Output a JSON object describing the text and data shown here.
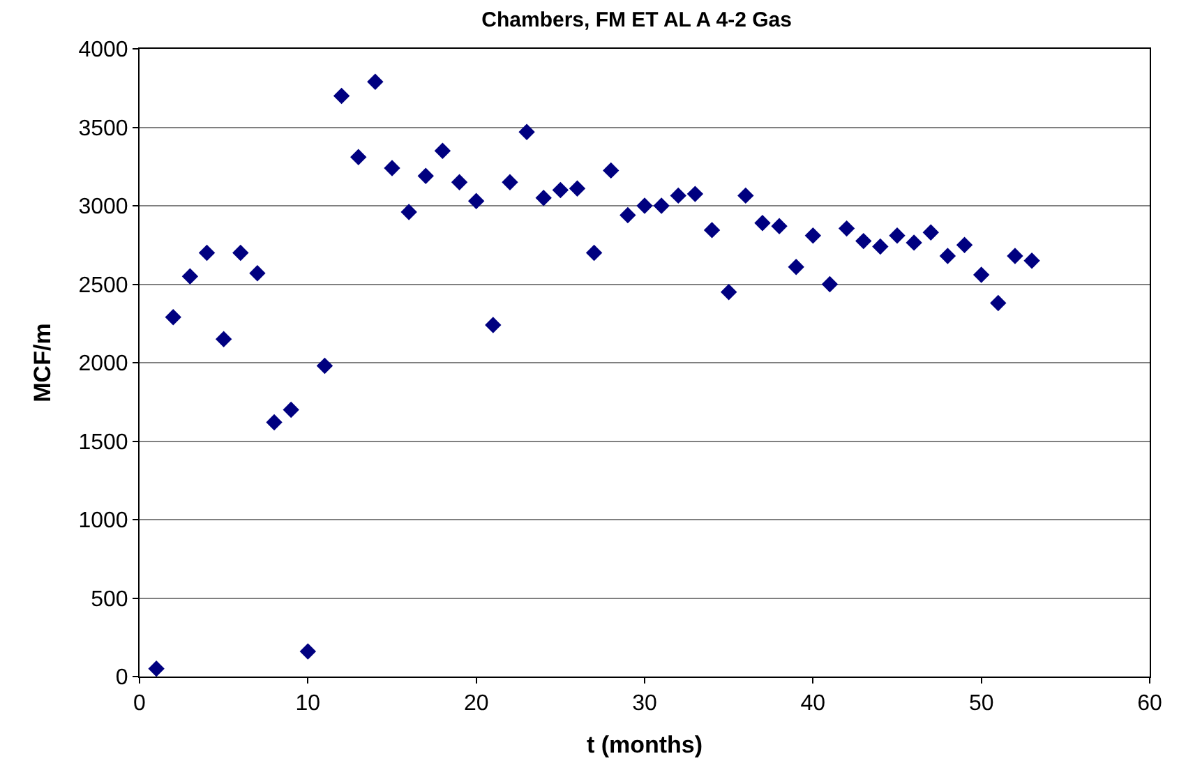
{
  "chart_data": {
    "type": "scatter",
    "title": "Chambers, FM ET AL A 4-2 Gas",
    "xlabel": "t (months)",
    "ylabel": "MCF/m",
    "x": [
      1,
      2,
      3,
      4,
      5,
      6,
      7,
      8,
      9,
      10,
      11,
      12,
      13,
      14,
      15,
      16,
      17,
      18,
      19,
      20,
      21,
      22,
      23,
      24,
      25,
      26,
      27,
      28,
      29,
      30,
      31,
      32,
      33,
      34,
      35,
      36,
      37,
      38,
      39,
      40,
      41,
      42,
      43,
      44,
      45,
      46,
      47,
      48,
      49,
      50,
      51,
      52,
      53
    ],
    "series": [
      {
        "color": "#000080",
        "values": [
          50,
          2290,
          2550,
          2700,
          2150,
          2700,
          2570,
          1620,
          1700,
          160,
          1980,
          3700,
          3310,
          3790,
          3240,
          2960,
          3190,
          3350,
          3150,
          3030,
          2240,
          3150,
          3470,
          3050,
          3100,
          3110,
          2700,
          3225,
          2940,
          3000,
          3000,
          3065,
          3075,
          2845,
          2450,
          3065,
          2890,
          2870,
          2610,
          2810,
          2500,
          2855,
          2775,
          2740,
          2810,
          2765,
          2830,
          2680,
          2750,
          2560,
          2380,
          2680,
          2650
        ]
      }
    ],
    "xlim": [
      0,
      60
    ],
    "xticks": [
      0,
      10,
      20,
      30,
      40,
      50,
      60
    ],
    "ylim": [
      0,
      4000
    ],
    "yticks": [
      0,
      500,
      1000,
      1500,
      2000,
      2500,
      3000,
      3500,
      4000
    ],
    "grid": "y",
    "marker": "diamond",
    "legend": false
  }
}
